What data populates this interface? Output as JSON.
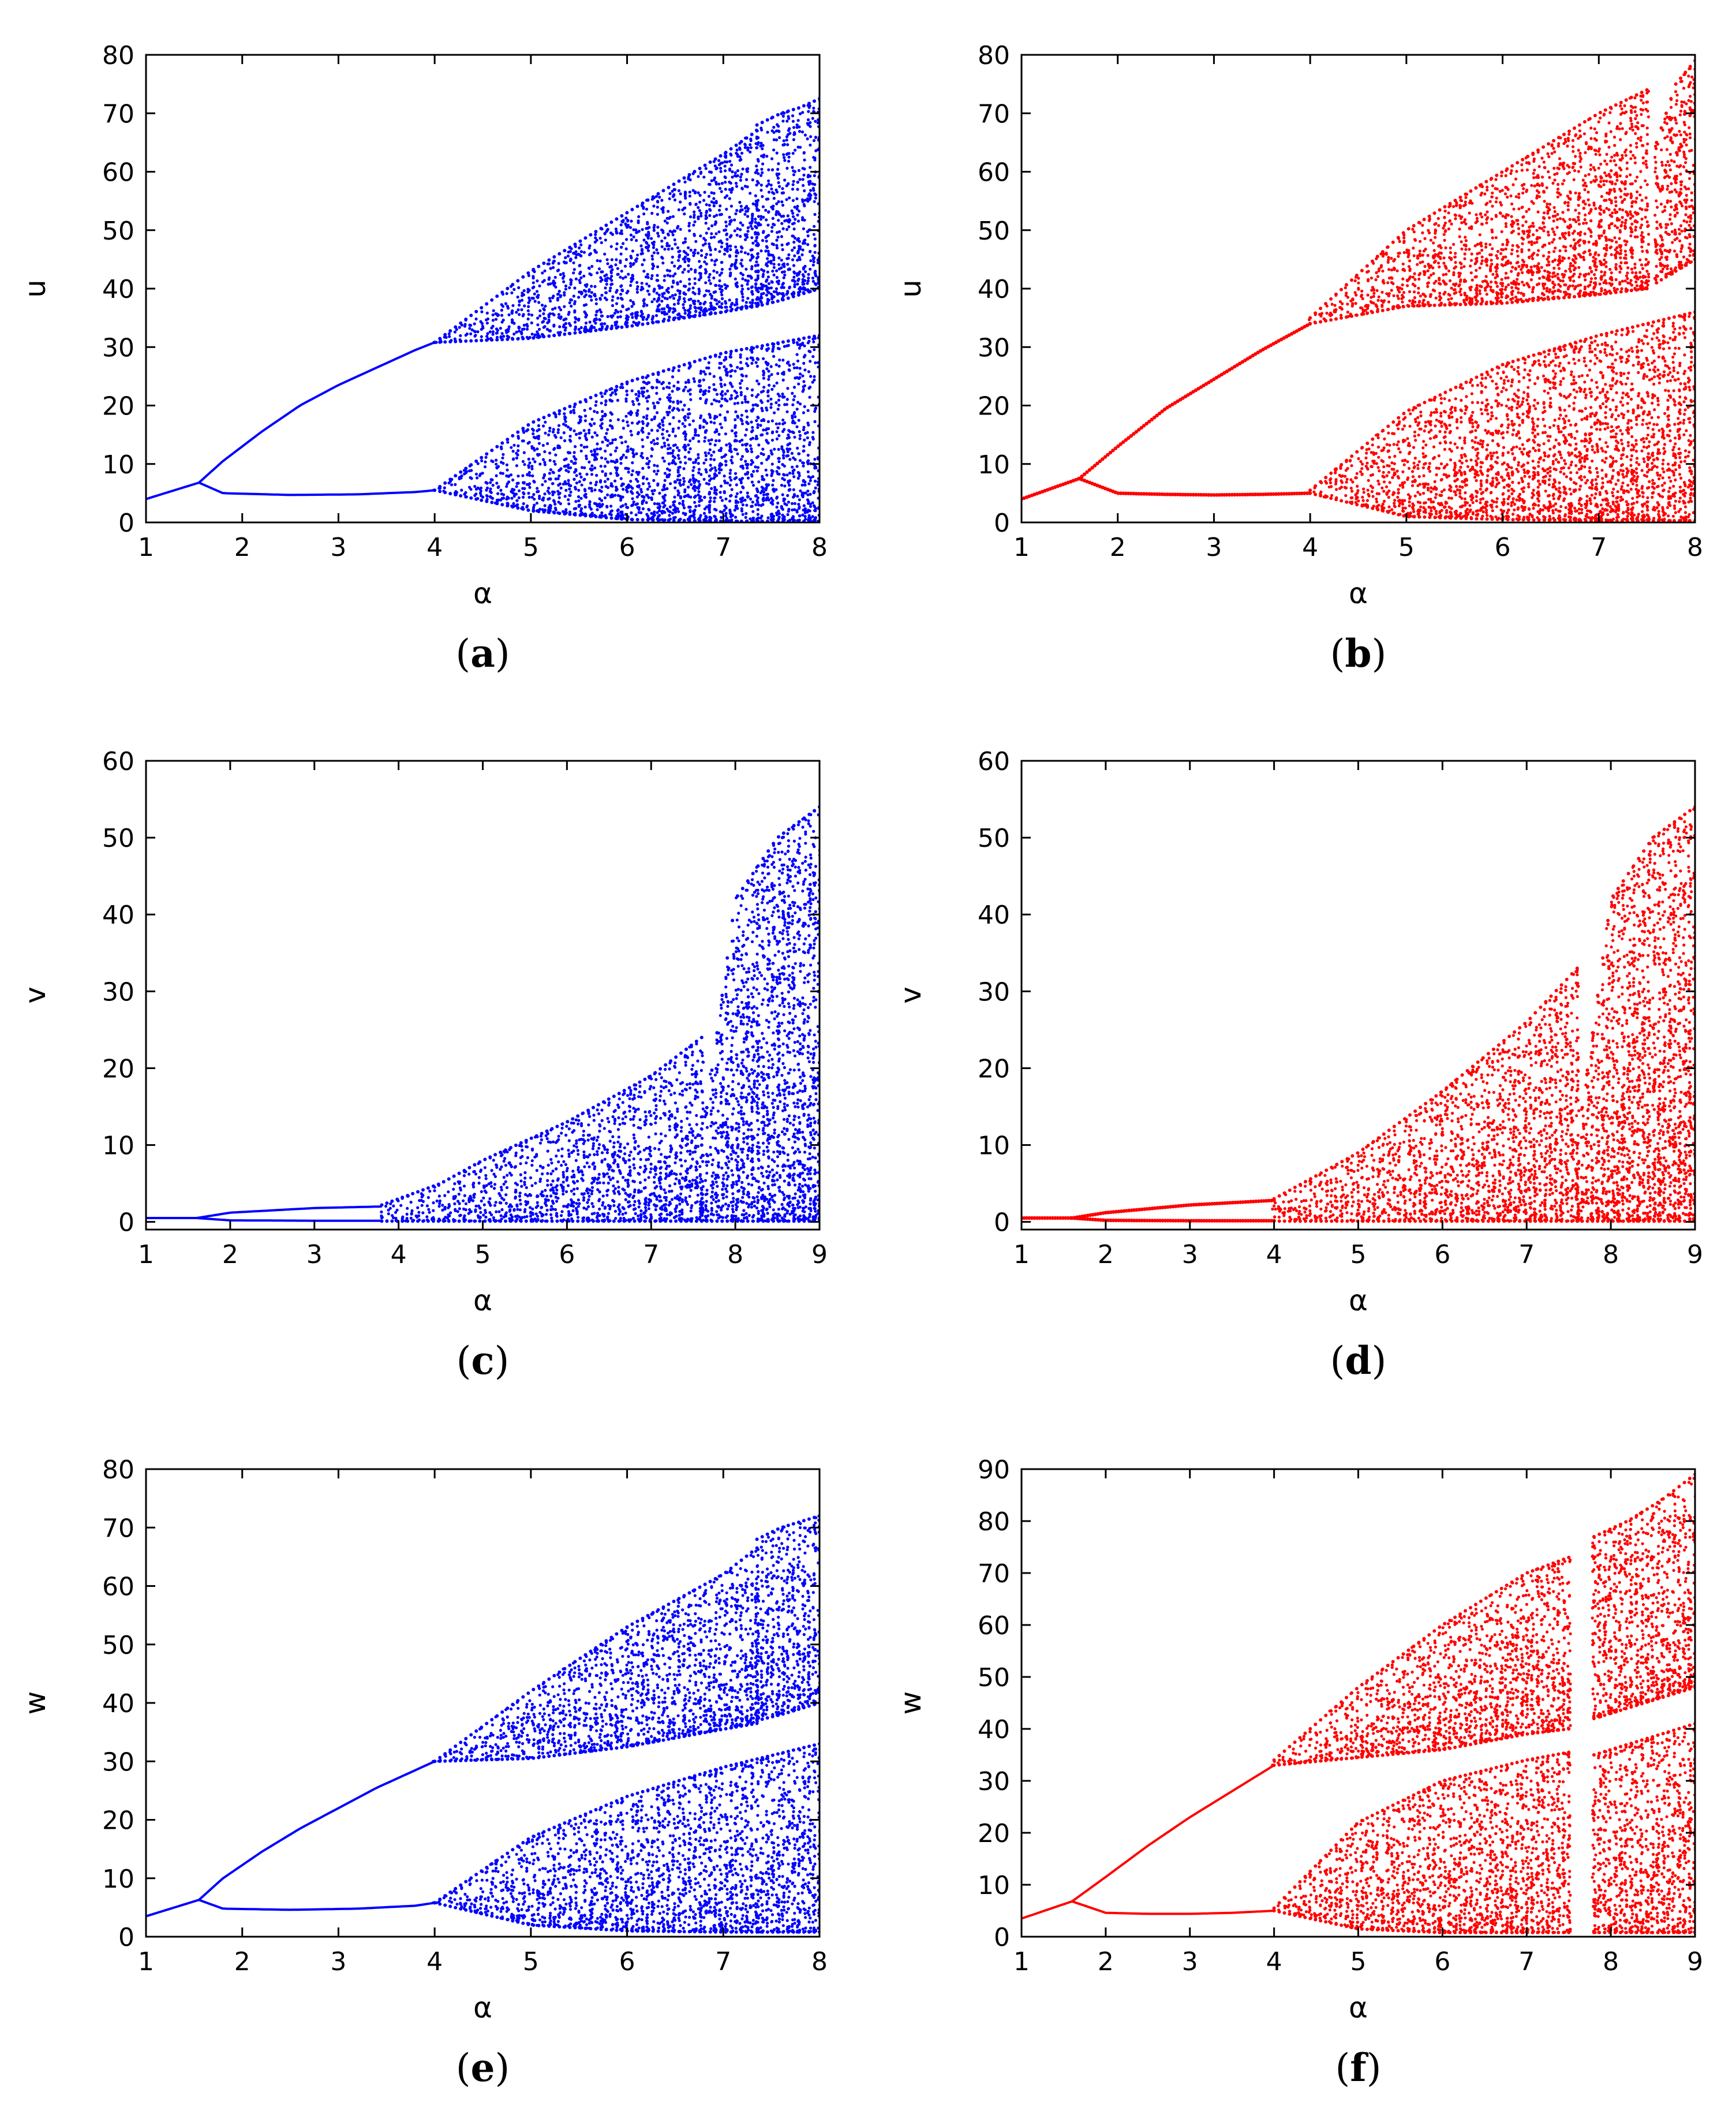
{
  "chart_data": [
    {
      "type": "scatter",
      "panel": "a",
      "caption": "a",
      "xlabel": "α",
      "ylabel": "u",
      "xlim": [
        1,
        8
      ],
      "ylim": [
        0,
        80
      ],
      "xticks": [
        1,
        2,
        3,
        4,
        5,
        6,
        7,
        8
      ],
      "yticks": [
        0,
        10,
        20,
        30,
        40,
        50,
        60,
        70,
        80
      ],
      "color": "#0000ff",
      "x_end": 8,
      "branches": [
        {
          "x": [
            1,
            1.55
          ],
          "y": [
            4.0,
            6.8
          ],
          "mode": "line"
        },
        {
          "x": [
            1.55,
            1.8,
            2.2,
            2.6,
            3.0,
            3.4,
            3.8,
            4.0
          ],
          "y": [
            6.8,
            10.5,
            15.5,
            20.0,
            23.5,
            26.5,
            29.5,
            30.8
          ],
          "mode": "line"
        },
        {
          "x": [
            1.55,
            1.8,
            2.5,
            3.2,
            3.8,
            4.0
          ],
          "y": [
            6.8,
            5.0,
            4.7,
            4.8,
            5.2,
            5.5
          ],
          "mode": "line"
        },
        {
          "x": [
            4.0,
            5.0,
            6.0,
            7.0,
            7.35
          ],
          "y_low": [
            30.8,
            31.5,
            33.5,
            36.0,
            37.0
          ],
          "y_high": [
            30.8,
            43.0,
            53.0,
            63.0,
            67.0
          ],
          "mode": "band"
        },
        {
          "x": [
            7.35,
            7.6,
            7.8,
            8.0
          ],
          "y_low": [
            37.0,
            38.0,
            39.0,
            40.0
          ],
          "y_high": [
            68.0,
            70.0,
            71.0,
            72.5
          ],
          "mode": "band"
        },
        {
          "x": [
            4.0,
            5.0,
            6.0,
            7.0,
            8.0
          ],
          "y_low": [
            5.5,
            2.0,
            0.5,
            0.2,
            0.2
          ],
          "y_high": [
            5.5,
            17.0,
            24.0,
            29.0,
            32.0
          ],
          "mode": "band"
        }
      ]
    },
    {
      "type": "scatter",
      "panel": "b",
      "caption": "b",
      "xlabel": "α",
      "ylabel": "u",
      "xlim": [
        1,
        8
      ],
      "ylim": [
        0,
        80
      ],
      "xticks": [
        1,
        2,
        3,
        4,
        5,
        6,
        7,
        8
      ],
      "yticks": [
        0,
        10,
        20,
        30,
        40,
        50,
        60,
        70,
        80
      ],
      "color": "#ff0000",
      "x_end": 8,
      "branches": [
        {
          "x": [
            1,
            1.6
          ],
          "y": [
            4.0,
            7.5
          ],
          "mode": "dots"
        },
        {
          "x": [
            1.6,
            2.0,
            2.5,
            3.0,
            3.5,
            4.0
          ],
          "y": [
            7.5,
            13.0,
            19.5,
            24.5,
            29.5,
            34.0
          ],
          "mode": "dots"
        },
        {
          "x": [
            1.6,
            2.0,
            2.5,
            3.0,
            3.5,
            4.0
          ],
          "y": [
            7.5,
            5.0,
            4.8,
            4.7,
            4.8,
            5.0
          ],
          "mode": "dots"
        },
        {
          "x": [
            4.0,
            5.0,
            6.0,
            7.0,
            7.5
          ],
          "y_low": [
            34.0,
            37.0,
            37.5,
            39.0,
            40.0
          ],
          "y_high": [
            35.0,
            50.0,
            60.0,
            70.0,
            74.0
          ],
          "mode": "band"
        },
        {
          "x": [
            7.6,
            7.8,
            8.0
          ],
          "y_low": [
            41.0,
            43.0,
            45.0
          ],
          "y_high": [
            65.0,
            75.0,
            79.0
          ],
          "mode": "band"
        },
        {
          "x": [
            4.0,
            5.0,
            6.0,
            7.0,
            8.0
          ],
          "y_low": [
            5.0,
            1.0,
            0.5,
            0.3,
            0.3
          ],
          "y_high": [
            5.5,
            19.0,
            27.0,
            32.0,
            36.0
          ],
          "mode": "band"
        }
      ]
    },
    {
      "type": "scatter",
      "panel": "c",
      "caption": "c",
      "xlabel": "α",
      "ylabel": "v",
      "xlim": [
        1,
        9
      ],
      "ylim": [
        -1,
        60
      ],
      "xticks": [
        1,
        2,
        3,
        4,
        5,
        6,
        7,
        8,
        9
      ],
      "yticks": [
        0,
        10,
        20,
        30,
        40,
        50,
        60
      ],
      "color": "#0000ff",
      "x_end": 9,
      "branches": [
        {
          "x": [
            1,
            1.6
          ],
          "y": [
            0.5,
            0.5
          ],
          "mode": "line"
        },
        {
          "x": [
            1.6,
            2.0,
            3.0,
            3.8
          ],
          "y": [
            0.5,
            1.2,
            1.8,
            2.0
          ],
          "mode": "line"
        },
        {
          "x": [
            1.6,
            2.0,
            3.0,
            3.8
          ],
          "y": [
            0.5,
            0.2,
            0.15,
            0.15
          ],
          "mode": "line"
        },
        {
          "x": [
            3.8,
            4.5,
            5.0,
            6.0,
            7.0,
            7.6
          ],
          "y_low": [
            0.1,
            0.1,
            0.1,
            0.1,
            0.1,
            0.1
          ],
          "y_high": [
            2.2,
            5.0,
            8.0,
            13.0,
            19.0,
            24.0
          ],
          "mode": "band"
        },
        {
          "x": [
            7.6,
            8.0,
            8.5,
            9.0
          ],
          "y_low": [
            0.1,
            0.1,
            0.1,
            0.1
          ],
          "y_high": [
            10.0,
            42.0,
            50.0,
            54.0
          ],
          "mode": "band"
        }
      ]
    },
    {
      "type": "scatter",
      "panel": "d",
      "caption": "d",
      "xlabel": "α",
      "ylabel": "v",
      "xlim": [
        1,
        9
      ],
      "ylim": [
        -1,
        60
      ],
      "xticks": [
        1,
        2,
        3,
        4,
        5,
        6,
        7,
        8,
        9
      ],
      "yticks": [
        0,
        10,
        20,
        30,
        40,
        50,
        60
      ],
      "color": "#ff0000",
      "x_end": 9,
      "branches": [
        {
          "x": [
            1,
            1.6
          ],
          "y": [
            0.5,
            0.5
          ],
          "mode": "dots"
        },
        {
          "x": [
            1.6,
            2.0,
            3.0,
            4.0
          ],
          "y": [
            0.5,
            1.2,
            2.2,
            2.8
          ],
          "mode": "dots"
        },
        {
          "x": [
            1.6,
            2.0,
            3.0,
            4.0
          ],
          "y": [
            0.5,
            0.2,
            0.15,
            0.15
          ],
          "mode": "dots"
        },
        {
          "x": [
            4.0,
            5.0,
            6.0,
            7.0,
            7.6
          ],
          "y_low": [
            0.1,
            0.1,
            0.1,
            0.1,
            0.1
          ],
          "y_high": [
            3.0,
            9.0,
            17.0,
            26.0,
            33.0
          ],
          "mode": "band"
        },
        {
          "x": [
            7.6,
            8.0,
            8.5,
            9.0
          ],
          "y_low": [
            0.1,
            0.1,
            0.1,
            0.1
          ],
          "y_high": [
            10.0,
            42.0,
            50.0,
            54.0
          ],
          "mode": "band"
        }
      ]
    },
    {
      "type": "scatter",
      "panel": "e",
      "caption": "e",
      "xlabel": "α",
      "ylabel": "w",
      "xlim": [
        1,
        8
      ],
      "ylim": [
        0,
        80
      ],
      "xticks": [
        1,
        2,
        3,
        4,
        5,
        6,
        7,
        8
      ],
      "yticks": [
        0,
        10,
        20,
        30,
        40,
        50,
        60,
        70,
        80
      ],
      "color": "#0000ff",
      "x_end": 8,
      "branches": [
        {
          "x": [
            1,
            1.55
          ],
          "y": [
            3.5,
            6.3
          ],
          "mode": "line"
        },
        {
          "x": [
            1.55,
            1.8,
            2.2,
            2.6,
            3.0,
            3.4,
            3.8,
            4.0
          ],
          "y": [
            6.3,
            10.0,
            14.5,
            18.5,
            22.0,
            25.5,
            28.5,
            30.0
          ],
          "mode": "line"
        },
        {
          "x": [
            1.55,
            1.8,
            2.5,
            3.2,
            3.8,
            4.0
          ],
          "y": [
            6.3,
            4.8,
            4.6,
            4.8,
            5.3,
            5.8
          ],
          "mode": "line"
        },
        {
          "x": [
            4.0,
            5.0,
            6.0,
            7.0,
            7.35
          ],
          "y_low": [
            30.0,
            30.5,
            32.5,
            35.5,
            36.5
          ],
          "y_high": [
            30.0,
            42.0,
            53.0,
            62.0,
            66.5
          ],
          "mode": "band"
        },
        {
          "x": [
            7.35,
            7.6,
            7.8,
            8.0
          ],
          "y_low": [
            37.0,
            38.0,
            39.0,
            40.0
          ],
          "y_high": [
            68.0,
            70.0,
            71.0,
            72.0
          ],
          "mode": "band"
        },
        {
          "x": [
            4.0,
            5.0,
            6.0,
            7.0,
            8.0
          ],
          "y_low": [
            5.8,
            2.0,
            1.0,
            0.8,
            0.8
          ],
          "y_high": [
            5.8,
            17.0,
            24.0,
            29.0,
            33.0
          ],
          "mode": "band"
        }
      ]
    },
    {
      "type": "scatter",
      "panel": "f",
      "caption": "f",
      "xlabel": "α",
      "ylabel": "w",
      "xlim": [
        1,
        9
      ],
      "ylim": [
        0,
        90
      ],
      "xticks": [
        1,
        2,
        3,
        4,
        5,
        6,
        7,
        8,
        9
      ],
      "yticks": [
        0,
        10,
        20,
        30,
        40,
        50,
        60,
        70,
        80,
        90
      ],
      "color": "#ff0000",
      "x_end": 9,
      "branches": [
        {
          "x": [
            1,
            1.6
          ],
          "y": [
            3.5,
            6.8
          ],
          "mode": "line"
        },
        {
          "x": [
            1.6,
            2.0,
            2.5,
            3.0,
            3.5,
            4.0
          ],
          "y": [
            6.8,
            11.5,
            17.5,
            23.0,
            28.0,
            33.0
          ],
          "mode": "line"
        },
        {
          "x": [
            1.6,
            2.0,
            2.5,
            3.0,
            3.5,
            4.0
          ],
          "y": [
            6.8,
            4.6,
            4.4,
            4.4,
            4.6,
            5.0
          ],
          "mode": "line"
        },
        {
          "x": [
            4.0,
            5.0,
            6.0,
            7.0,
            7.5
          ],
          "y_low": [
            33.0,
            34.5,
            36.0,
            39.0,
            40.0
          ],
          "y_high": [
            34.0,
            48.0,
            60.0,
            70.0,
            73.0
          ],
          "mode": "band"
        },
        {
          "x": [
            7.8,
            8.2,
            8.6,
            9.0
          ],
          "y_low": [
            42.0,
            44.0,
            46.0,
            48.0
          ],
          "y_high": [
            77.0,
            80.0,
            84.0,
            89.0
          ],
          "mode": "band"
        },
        {
          "x": [
            4.0,
            5.0,
            6.0,
            7.0,
            7.5
          ],
          "y_low": [
            5.0,
            1.5,
            0.8,
            0.8,
            0.8
          ],
          "y_high": [
            5.5,
            22.0,
            30.0,
            34.0,
            35.5
          ],
          "mode": "band"
        },
        {
          "x": [
            7.8,
            8.2,
            8.6,
            9.0
          ],
          "y_low": [
            0.8,
            0.8,
            0.8,
            0.8
          ],
          "y_high": [
            35.0,
            37.0,
            39.0,
            41.0
          ],
          "mode": "band"
        }
      ]
    }
  ]
}
